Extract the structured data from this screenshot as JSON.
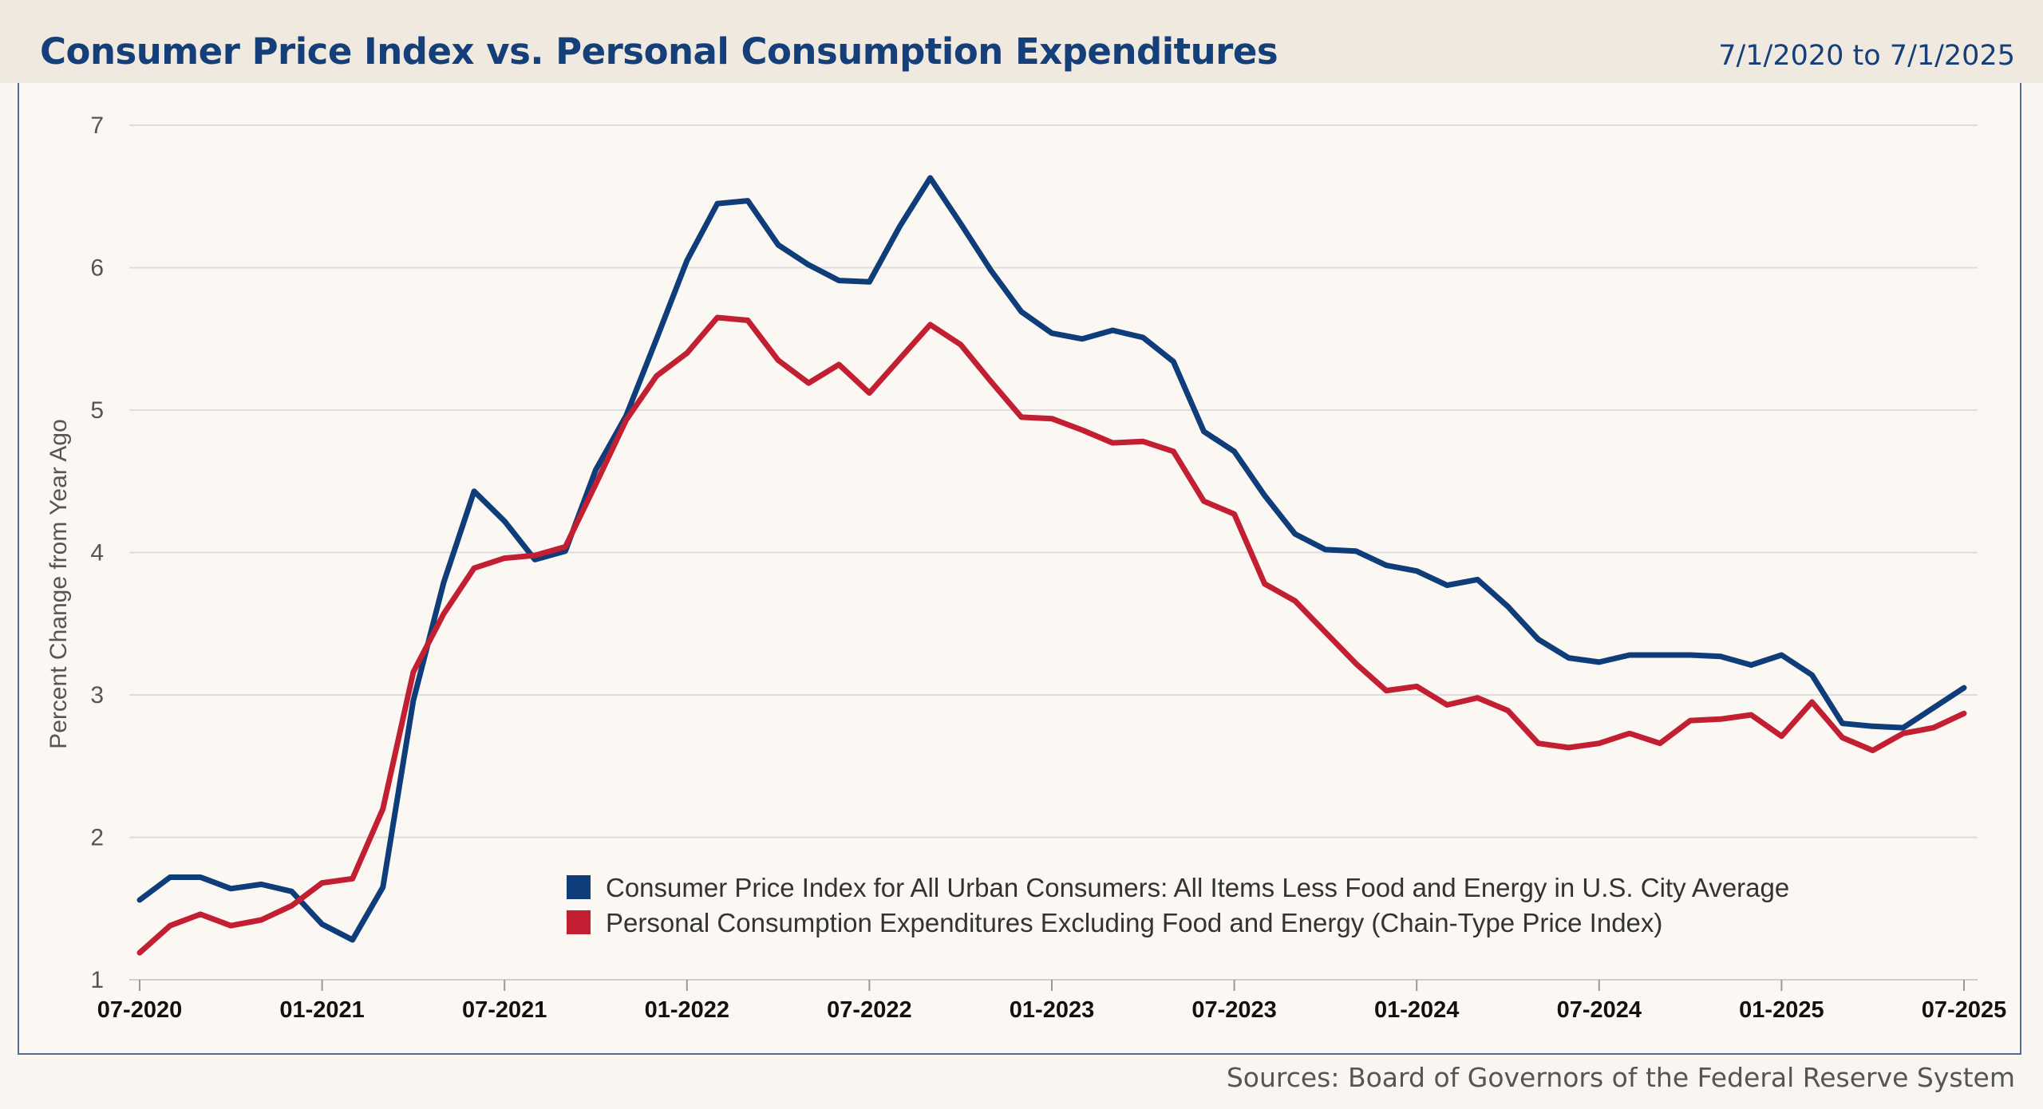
{
  "header": {
    "title": "Consumer Price Index vs. Personal Consumption Expenditures",
    "date_range": "7/1/2020 to 7/1/2025"
  },
  "footer": {
    "sources": "Sources: Board of Governors of the Federal Reserve System"
  },
  "chart_data": {
    "type": "line",
    "title": "Consumer Price Index vs. Personal Consumption Expenditures",
    "xlabel": "",
    "ylabel": "Percent Change from Year Ago",
    "ylim": [
      1,
      7
    ],
    "yticks": [
      1,
      2,
      3,
      4,
      5,
      6,
      7
    ],
    "xticks": [
      "07-2020",
      "01-2021",
      "07-2021",
      "01-2022",
      "07-2022",
      "01-2023",
      "07-2023",
      "01-2024",
      "07-2024",
      "01-2025",
      "07-2025"
    ],
    "grid": true,
    "legend_position": "bottom-center",
    "x": [
      "2020-07",
      "2020-08",
      "2020-09",
      "2020-10",
      "2020-11",
      "2020-12",
      "2021-01",
      "2021-02",
      "2021-03",
      "2021-04",
      "2021-05",
      "2021-06",
      "2021-07",
      "2021-08",
      "2021-09",
      "2021-10",
      "2021-11",
      "2021-12",
      "2022-01",
      "2022-02",
      "2022-03",
      "2022-04",
      "2022-05",
      "2022-06",
      "2022-07",
      "2022-08",
      "2022-09",
      "2022-10",
      "2022-11",
      "2022-12",
      "2023-01",
      "2023-02",
      "2023-03",
      "2023-04",
      "2023-05",
      "2023-06",
      "2023-07",
      "2023-08",
      "2023-09",
      "2023-10",
      "2023-11",
      "2023-12",
      "2024-01",
      "2024-02",
      "2024-03",
      "2024-04",
      "2024-05",
      "2024-06",
      "2024-07",
      "2024-08",
      "2024-09",
      "2024-10",
      "2024-11",
      "2024-12",
      "2025-01",
      "2025-02",
      "2025-03",
      "2025-04",
      "2025-05",
      "2025-06",
      "2025-07"
    ],
    "series": [
      {
        "name": "Consumer Price Index for All Urban Consumers: All Items Less Food and Energy in U.S. City Average",
        "color": "#0e3d7a",
        "values": [
          1.56,
          1.72,
          1.72,
          1.64,
          1.67,
          1.62,
          1.39,
          1.28,
          1.65,
          2.96,
          3.79,
          4.43,
          4.22,
          3.95,
          4.01,
          4.58,
          4.96,
          5.5,
          6.05,
          6.45,
          6.47,
          6.16,
          6.02,
          5.91,
          5.9,
          6.29,
          6.63,
          6.31,
          5.98,
          5.69,
          5.54,
          5.5,
          5.56,
          5.51,
          5.34,
          4.85,
          4.71,
          4.4,
          4.13,
          4.02,
          4.01,
          3.91,
          3.87,
          3.77,
          3.81,
          3.62,
          3.39,
          3.26,
          3.23,
          3.28,
          3.28,
          3.28,
          3.27,
          3.21,
          3.28,
          3.14,
          2.8,
          2.78,
          2.77,
          2.91,
          3.05
        ]
      },
      {
        "name": "Personal Consumption Expenditures Excluding Food and Energy (Chain-Type Price Index)",
        "color": "#c21f32",
        "values": [
          1.19,
          1.38,
          1.46,
          1.38,
          1.42,
          1.52,
          1.68,
          1.71,
          2.2,
          3.16,
          3.57,
          3.89,
          3.96,
          3.98,
          4.04,
          4.48,
          4.93,
          5.24,
          5.4,
          5.65,
          5.63,
          5.35,
          5.19,
          5.32,
          5.12,
          5.36,
          5.6,
          5.46,
          5.2,
          4.95,
          4.94,
          4.86,
          4.77,
          4.78,
          4.71,
          4.36,
          4.27,
          3.78,
          3.66,
          3.44,
          3.22,
          3.03,
          3.06,
          2.93,
          2.98,
          2.89,
          2.66,
          2.63,
          2.66,
          2.73,
          2.66,
          2.82,
          2.83,
          2.86,
          2.71,
          2.95,
          2.7,
          2.61,
          2.73,
          2.77,
          2.87
        ]
      }
    ]
  }
}
